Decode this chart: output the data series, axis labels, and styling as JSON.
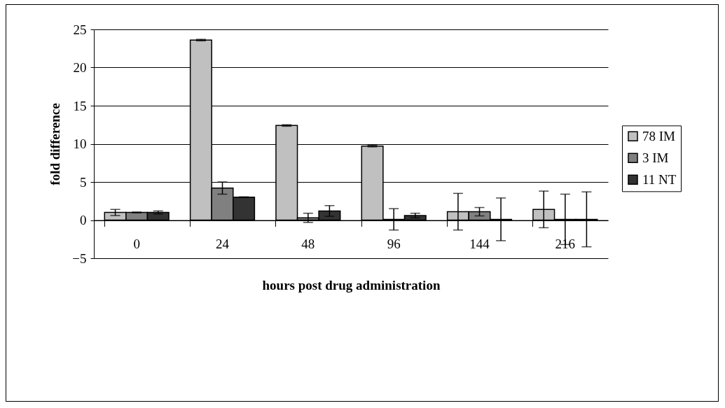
{
  "chart_data": {
    "type": "bar",
    "xlabel": "hours post drug administration",
    "ylabel": "fold difference",
    "categories": [
      "0",
      "24",
      "48",
      "96",
      "144",
      "216"
    ],
    "series": [
      {
        "name": "78 IM",
        "color": "#c0c0c0",
        "values": [
          1.0,
          23.6,
          12.4,
          9.7,
          1.1,
          1.4
        ],
        "errors": [
          0.4,
          0.1,
          0.1,
          0.1,
          2.4,
          2.4
        ]
      },
      {
        "name": "3 IM",
        "color": "#808080",
        "values": [
          1.0,
          4.2,
          0.3,
          0.1,
          1.1,
          0.1
        ],
        "errors": [
          0.05,
          0.8,
          0.6,
          1.4,
          0.55,
          3.3
        ]
      },
      {
        "name": "11 NT",
        "color": "#333333",
        "values": [
          1.0,
          3.0,
          1.2,
          0.6,
          0.1,
          0.1
        ],
        "errors": [
          0.2,
          0.05,
          0.7,
          0.3,
          2.8,
          3.6
        ]
      }
    ],
    "ylim": [
      -5,
      25
    ],
    "yticks": [
      -5,
      0,
      5,
      10,
      15,
      20,
      25
    ],
    "grid": "y",
    "legend": "right"
  }
}
